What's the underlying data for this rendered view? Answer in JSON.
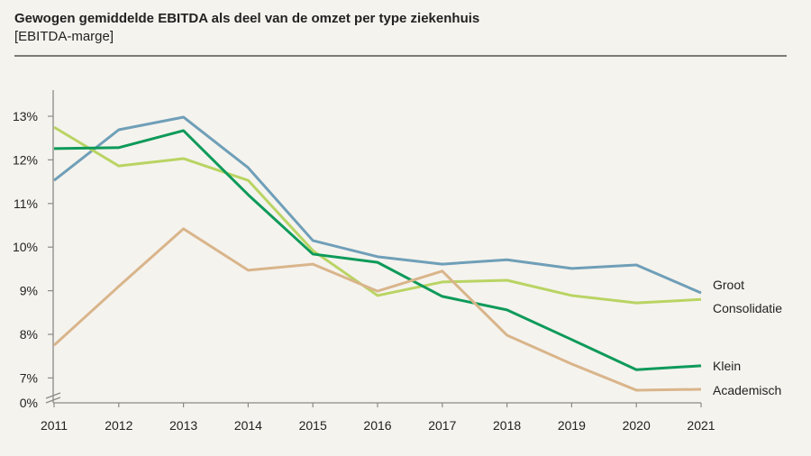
{
  "chart_data": {
    "type": "line",
    "title": "Gewogen gemiddelde EBITDA als deel van de omzet per type ziekenhuis",
    "subtitle": "[EBITDA-marge]",
    "xlabel": "",
    "ylabel": "",
    "x": [
      2011,
      2012,
      2013,
      2014,
      2015,
      2016,
      2017,
      2018,
      2019,
      2020,
      2021
    ],
    "y_ticks": [
      "0%",
      "7%",
      "8%",
      "9%",
      "10%",
      "11%",
      "12%",
      "13%"
    ],
    "y_tick_values": [
      6.45,
      7,
      8,
      9,
      10,
      11,
      12,
      13
    ],
    "ylim": [
      6.45,
      13.6
    ],
    "y_axis_break": true,
    "grid": false,
    "legend": "right, labels at line ends",
    "series": [
      {
        "name": "Groot",
        "color": "#6f9fb8",
        "values": [
          11.53,
          12.69,
          12.98,
          11.82,
          10.15,
          9.78,
          9.61,
          9.71,
          9.51,
          9.59,
          8.95
        ]
      },
      {
        "name": "Consolidatie",
        "color": "#b9d463",
        "values": [
          12.75,
          11.86,
          12.03,
          11.53,
          9.92,
          8.89,
          9.2,
          9.24,
          8.89,
          8.72,
          8.8
        ]
      },
      {
        "name": "Klein",
        "color": "#0e9a5a",
        "values": [
          12.26,
          12.28,
          12.67,
          11.2,
          9.84,
          9.65,
          8.87,
          8.56,
          7.88,
          7.19,
          7.28
        ]
      },
      {
        "name": "Academisch",
        "color": "#d9b58b",
        "values": [
          7.75,
          9.1,
          10.42,
          9.47,
          9.61,
          8.99,
          9.45,
          7.98,
          7.32,
          6.72,
          6.74
        ]
      }
    ]
  }
}
